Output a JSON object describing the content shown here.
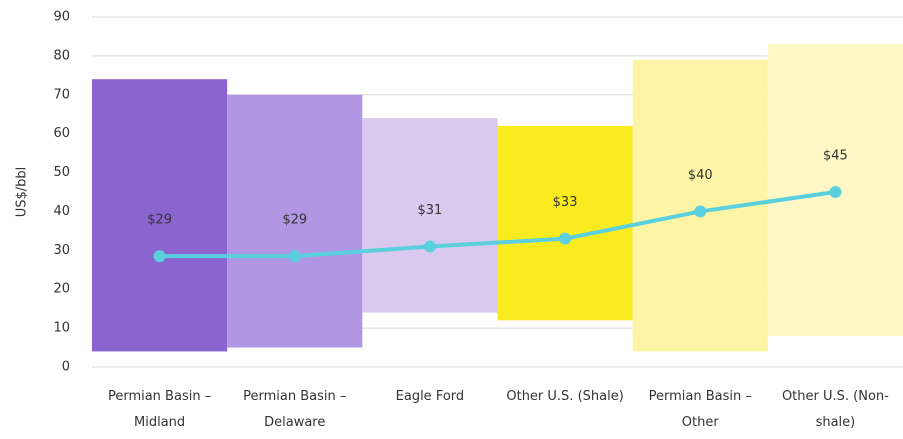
{
  "chart_data": {
    "type": "bar",
    "ylabel": "US$/bbl",
    "categories": [
      "Permian Basin – Midland",
      "Permian Basin – Delaware",
      "Eagle Ford",
      "Other U.S. (Shale)",
      "Permian Basin – Other",
      "Other U.S. (Non-shale)"
    ],
    "bars": {
      "low": [
        4,
        5,
        14,
        12,
        4,
        8
      ],
      "high": [
        74,
        70,
        64,
        62,
        79,
        83
      ],
      "colors": [
        "#8b64cf",
        "#b197e3",
        "#d9c9ef",
        "#f9eb1f",
        "#fdf5a5",
        "#fff8c6"
      ]
    },
    "line": {
      "color": "#5ad0df",
      "values": [
        28.5,
        28.5,
        31,
        33,
        40,
        45
      ],
      "value_labels": [
        "$29",
        "$29",
        "$31",
        "$33",
        "$40",
        "$45"
      ]
    },
    "ylim": [
      0,
      90
    ],
    "yticks": [
      0,
      10,
      20,
      30,
      40,
      50,
      60,
      70,
      80,
      90
    ],
    "grid": true
  }
}
